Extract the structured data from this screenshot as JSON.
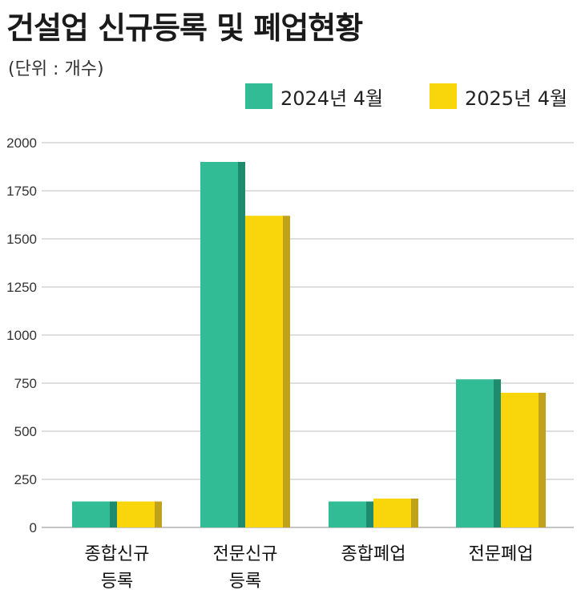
{
  "header": {
    "title": "건설업 신규등록 및 폐업현황",
    "unit": "(단위 : 개수)"
  },
  "colors": {
    "series_2024": "#32BC95",
    "series_2024_side": "#1E8C6C",
    "series_2025": "#F9D50C",
    "series_2025_side": "#C2A21C",
    "grid": "#bdbdbd"
  },
  "chart_data": {
    "type": "bar",
    "title": "건설업 신규등록 및 폐업현황",
    "ylabel": "(단위 : 개수)",
    "xlabel": "",
    "categories": [
      [
        "종합신규",
        "등록"
      ],
      [
        "전문신규",
        "등록"
      ],
      [
        "종합폐업"
      ],
      [
        "전문폐업"
      ]
    ],
    "series": [
      {
        "name": "2024년 4월",
        "values": [
          135,
          1900,
          135,
          770
        ]
      },
      {
        "name": "2025년 4월",
        "values": [
          135,
          1620,
          150,
          700
        ]
      }
    ],
    "ylim": [
      0,
      2000
    ],
    "yticks": [
      0,
      250,
      500,
      750,
      1000,
      1250,
      1500,
      1750,
      2000
    ],
    "grid": true,
    "legend_position": "top-right"
  }
}
